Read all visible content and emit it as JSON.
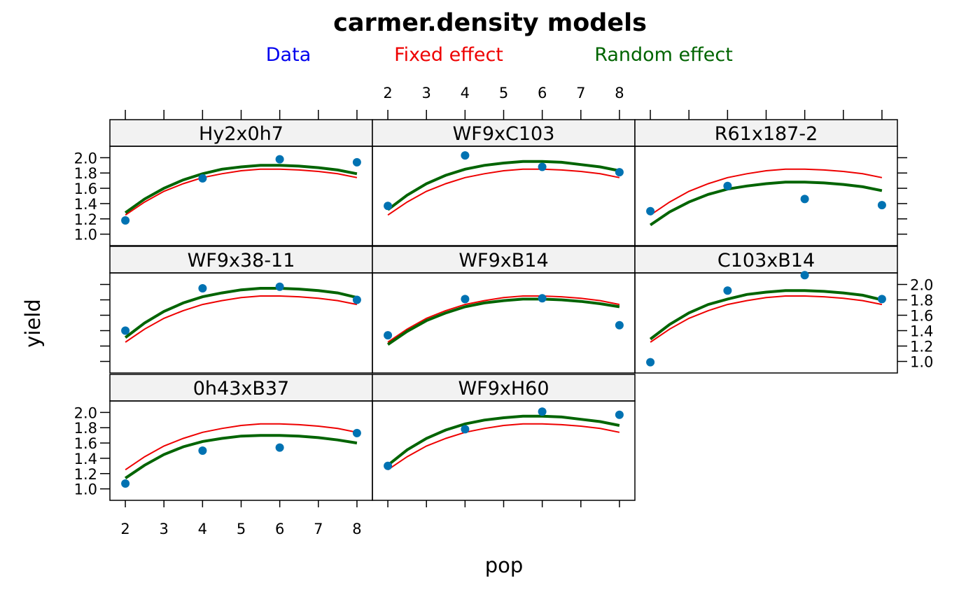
{
  "chart_data": {
    "type": "line",
    "title": "carmer.density models",
    "xlabel": "pop",
    "ylabel": "yield",
    "xlim": [
      1.6,
      8.4
    ],
    "ylim": [
      0.85,
      2.15
    ],
    "x_ticks": [
      2,
      3,
      4,
      5,
      6,
      7,
      8
    ],
    "x_tick_labels": [
      "2",
      "3",
      "4",
      "5",
      "6",
      "7",
      "8"
    ],
    "y_ticks": [
      1.0,
      1.2,
      1.4,
      1.6,
      1.8,
      2.0
    ],
    "y_tick_labels": [
      "1.0",
      "1.2",
      "1.4",
      "1.6",
      "1.8",
      "2.0"
    ],
    "legend": [
      {
        "label": "Data",
        "color": "#0000ee"
      },
      {
        "label": "Fixed effect",
        "color": "#ee0000"
      },
      {
        "label": "Random effect",
        "color": "#006400"
      }
    ],
    "colors": {
      "points": "#0072b2",
      "fixed": "#ee0000",
      "random": "#006400",
      "strip": "#f2f2f2"
    },
    "curve_x": [
      2,
      2.5,
      3,
      3.5,
      4,
      4.5,
      5,
      5.5,
      6,
      6.5,
      7,
      7.5,
      8
    ],
    "fixed_effect": [
      1.25,
      1.42,
      1.56,
      1.66,
      1.74,
      1.79,
      1.83,
      1.85,
      1.85,
      1.84,
      1.82,
      1.79,
      1.74
    ],
    "panels": [
      {
        "name": "Hy2x0h7",
        "x": [
          2,
          4,
          6,
          8
        ],
        "y": [
          1.18,
          1.73,
          1.98,
          1.94
        ],
        "random_effect": [
          1.28,
          1.46,
          1.6,
          1.71,
          1.79,
          1.85,
          1.88,
          1.9,
          1.9,
          1.89,
          1.87,
          1.84,
          1.79
        ]
      },
      {
        "name": "WF9xC103",
        "x": [
          2,
          4,
          6,
          8
        ],
        "y": [
          1.37,
          2.03,
          1.88,
          1.81
        ],
        "random_effect": [
          1.32,
          1.51,
          1.66,
          1.77,
          1.85,
          1.9,
          1.93,
          1.95,
          1.95,
          1.94,
          1.91,
          1.88,
          1.83
        ]
      },
      {
        "name": "R61x187-2",
        "x": [
          2,
          4,
          6,
          8
        ],
        "y": [
          1.3,
          1.63,
          1.46,
          1.38
        ],
        "random_effect": [
          1.12,
          1.29,
          1.42,
          1.52,
          1.59,
          1.63,
          1.66,
          1.68,
          1.68,
          1.67,
          1.65,
          1.62,
          1.57
        ]
      },
      {
        "name": "WF9x38-11",
        "x": [
          2,
          4,
          6,
          8
        ],
        "y": [
          1.4,
          1.95,
          1.97,
          1.8
        ],
        "random_effect": [
          1.31,
          1.5,
          1.65,
          1.76,
          1.84,
          1.89,
          1.93,
          1.95,
          1.95,
          1.94,
          1.92,
          1.89,
          1.83
        ]
      },
      {
        "name": "WF9xB14",
        "x": [
          2,
          4,
          6,
          8
        ],
        "y": [
          1.34,
          1.81,
          1.82,
          1.47
        ],
        "random_effect": [
          1.22,
          1.39,
          1.53,
          1.63,
          1.71,
          1.76,
          1.79,
          1.81,
          1.81,
          1.8,
          1.78,
          1.75,
          1.71
        ]
      },
      {
        "name": "C103xB14",
        "x": [
          2,
          4,
          6,
          8
        ],
        "y": [
          0.99,
          1.92,
          2.12,
          1.81
        ],
        "random_effect": [
          1.29,
          1.48,
          1.63,
          1.74,
          1.81,
          1.87,
          1.9,
          1.92,
          1.92,
          1.91,
          1.89,
          1.86,
          1.8
        ]
      },
      {
        "name": "0h43xB37",
        "x": [
          2,
          4,
          6,
          8
        ],
        "y": [
          1.07,
          1.5,
          1.54,
          1.73
        ],
        "random_effect": [
          1.14,
          1.31,
          1.45,
          1.55,
          1.62,
          1.66,
          1.69,
          1.7,
          1.7,
          1.69,
          1.67,
          1.64,
          1.6
        ]
      },
      {
        "name": "WF9xH60",
        "x": [
          2,
          4,
          6,
          8
        ],
        "y": [
          1.3,
          1.78,
          2.01,
          1.97
        ],
        "random_effect": [
          1.31,
          1.51,
          1.66,
          1.77,
          1.85,
          1.9,
          1.93,
          1.95,
          1.95,
          1.94,
          1.91,
          1.88,
          1.83
        ]
      }
    ]
  }
}
